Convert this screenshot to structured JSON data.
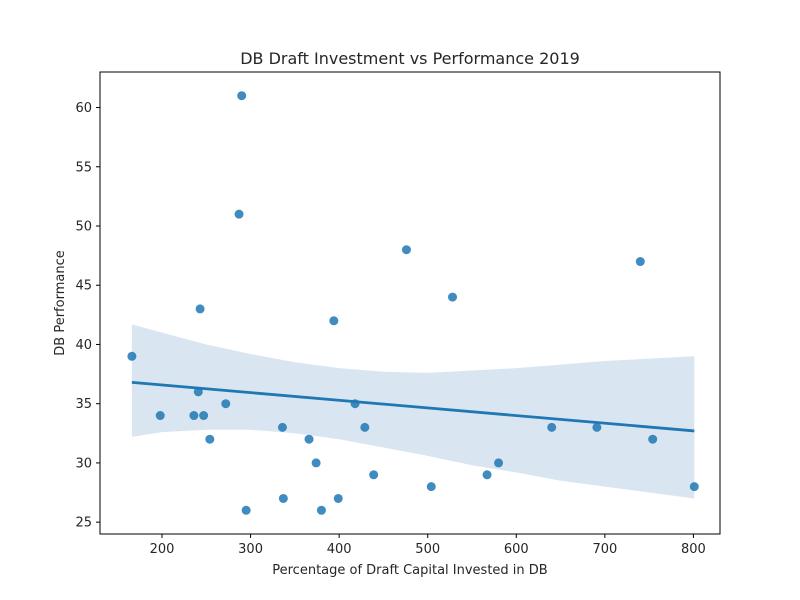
{
  "chart_data": {
    "type": "scatter",
    "title": "DB Draft Investment vs Performance 2019",
    "xlabel": "Percentage of Draft Capital Invested in DB",
    "ylabel": "DB Performance",
    "xlim": [
      130,
      830
    ],
    "ylim": [
      24,
      63
    ],
    "x_ticks": [
      "200",
      "300",
      "400",
      "500",
      "600",
      "700",
      "800"
    ],
    "y_ticks": [
      "25",
      "30",
      "35",
      "40",
      "45",
      "50",
      "55",
      "60"
    ],
    "grid": false,
    "legend": "none",
    "colors": {
      "points": "#1f77b4",
      "line": "#1f77b4",
      "band": "#c9dbec"
    },
    "points": [
      {
        "x": 166,
        "y": 39
      },
      {
        "x": 198,
        "y": 34
      },
      {
        "x": 236,
        "y": 34
      },
      {
        "x": 241,
        "y": 36
      },
      {
        "x": 243,
        "y": 43
      },
      {
        "x": 247,
        "y": 34
      },
      {
        "x": 254,
        "y": 32
      },
      {
        "x": 272,
        "y": 35
      },
      {
        "x": 287,
        "y": 51
      },
      {
        "x": 290,
        "y": 61
      },
      {
        "x": 295,
        "y": 26
      },
      {
        "x": 336,
        "y": 33
      },
      {
        "x": 337,
        "y": 27
      },
      {
        "x": 366,
        "y": 32
      },
      {
        "x": 374,
        "y": 30
      },
      {
        "x": 380,
        "y": 26
      },
      {
        "x": 394,
        "y": 42
      },
      {
        "x": 399,
        "y": 27
      },
      {
        "x": 418,
        "y": 35
      },
      {
        "x": 429,
        "y": 33
      },
      {
        "x": 439,
        "y": 29
      },
      {
        "x": 476,
        "y": 48
      },
      {
        "x": 504,
        "y": 28
      },
      {
        "x": 528,
        "y": 44
      },
      {
        "x": 567,
        "y": 29
      },
      {
        "x": 580,
        "y": 30
      },
      {
        "x": 640,
        "y": 33
      },
      {
        "x": 691,
        "y": 33
      },
      {
        "x": 740,
        "y": 47
      },
      {
        "x": 754,
        "y": 32
      },
      {
        "x": 801,
        "y": 28
      }
    ],
    "regression": {
      "x": [
        166,
        801
      ],
      "y": [
        36.8,
        32.7
      ]
    },
    "confidence_band": [
      {
        "x": 166,
        "lo": 32.2,
        "hi": 41.7
      },
      {
        "x": 200,
        "lo": 32.6,
        "hi": 41.0
      },
      {
        "x": 250,
        "lo": 32.8,
        "hi": 40.0
      },
      {
        "x": 300,
        "lo": 32.8,
        "hi": 39.2
      },
      {
        "x": 350,
        "lo": 32.5,
        "hi": 38.5
      },
      {
        "x": 400,
        "lo": 32.0,
        "hi": 38.0
      },
      {
        "x": 450,
        "lo": 31.3,
        "hi": 37.7
      },
      {
        "x": 500,
        "lo": 30.6,
        "hi": 37.6
      },
      {
        "x": 550,
        "lo": 29.8,
        "hi": 37.8
      },
      {
        "x": 600,
        "lo": 29.2,
        "hi": 38.0
      },
      {
        "x": 650,
        "lo": 28.5,
        "hi": 38.3
      },
      {
        "x": 700,
        "lo": 28.0,
        "hi": 38.6
      },
      {
        "x": 750,
        "lo": 27.5,
        "hi": 38.8
      },
      {
        "x": 801,
        "lo": 27.0,
        "hi": 39.0
      }
    ]
  }
}
